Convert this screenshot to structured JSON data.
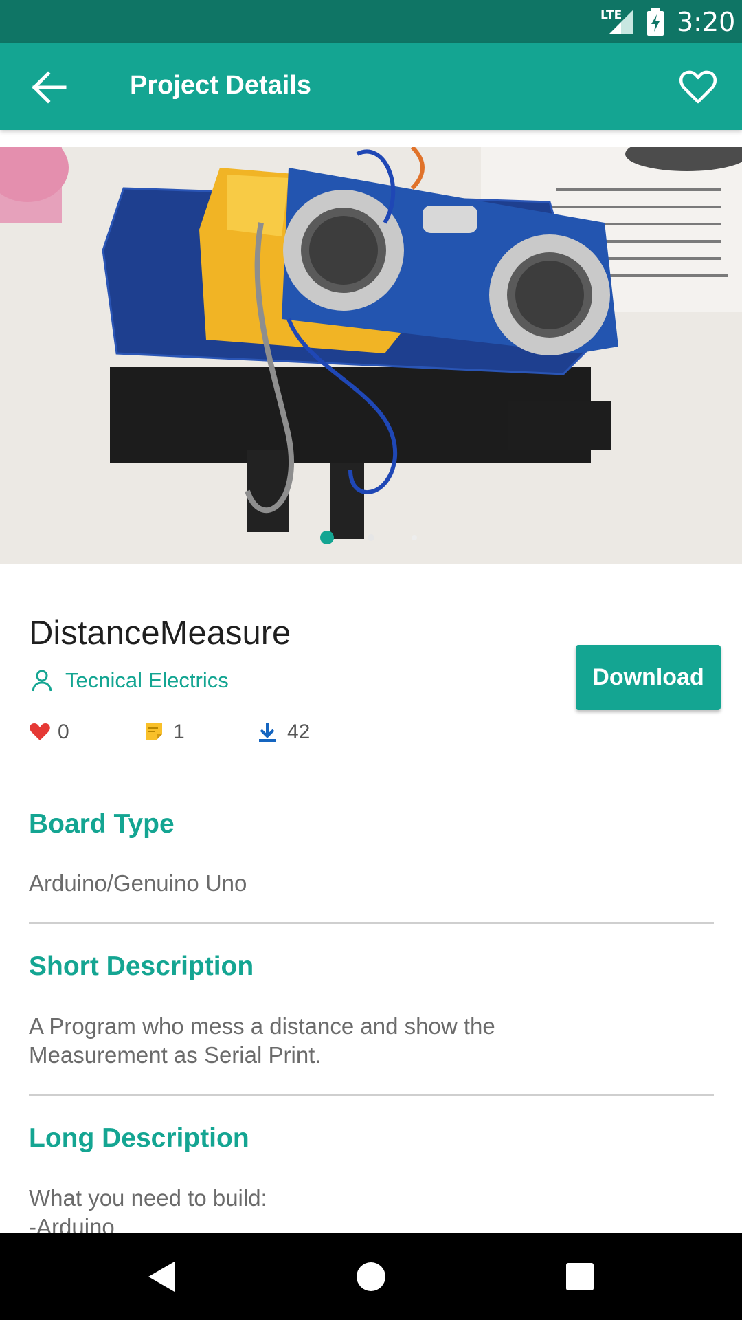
{
  "status_bar": {
    "network": "LTE",
    "time": "3:20"
  },
  "app_bar": {
    "title": "Project Details",
    "back_icon": "arrow-back-icon",
    "favorite_icon": "heart-outline-icon"
  },
  "gallery": {
    "image_description_icon": "project-photo",
    "page_count": 3,
    "current_page": 1,
    "accent": "#14a592"
  },
  "project": {
    "title": "DistanceMeasure",
    "author": "Tecnical Electrics",
    "download_label": "Download",
    "stats": {
      "likes": "0",
      "comments": "1",
      "downloads": "42"
    }
  },
  "sections": [
    {
      "title": "Board Type",
      "text": "Arduino/Genuino Uno"
    },
    {
      "title": "Short Description",
      "text": "A Program who mess a distance and show the Measurement as Serial Print."
    },
    {
      "title": "Long Description",
      "text": "What you need to build:\n-Arduino"
    }
  ],
  "colors": {
    "primary": "#14a592",
    "primary_dark": "#0f7565",
    "like": "#e53935",
    "comment": "#f9c02a",
    "download": "#1565c0"
  }
}
